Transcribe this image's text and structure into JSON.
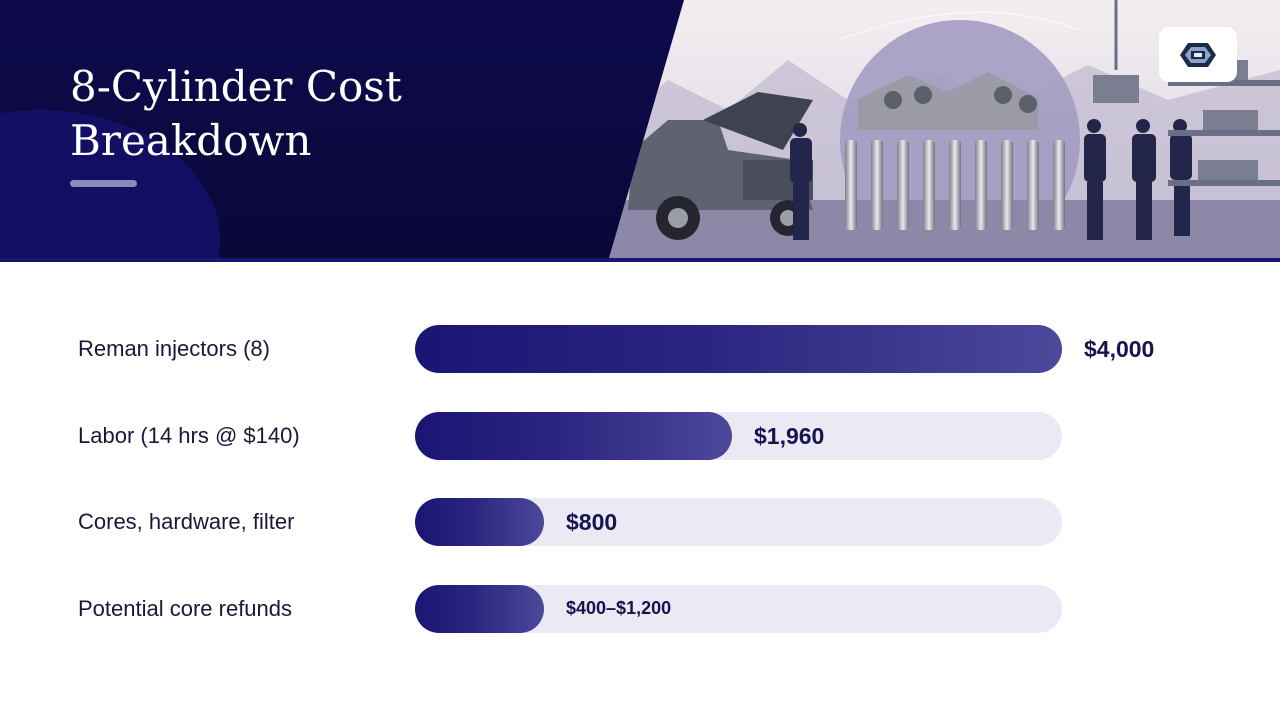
{
  "title_line1": "8-Cylinder Cost",
  "title_line2": "Breakdown",
  "colors": {
    "header_bg": "#0e0a4d",
    "bar_fill": "#2b2580",
    "bar_track": "#ebe9f4",
    "value_text": "#16134f"
  },
  "chart_data": {
    "type": "bar",
    "orientation": "horizontal",
    "categories": [
      "Reman injectors (8)",
      "Labor (14 hrs @ $140)",
      "Cores, hardware, filter",
      "Potential core refunds"
    ],
    "values": [
      4000,
      1960,
      800,
      800
    ],
    "value_labels": [
      "$4,000",
      "$1,960",
      "$800",
      "$400–$1,200"
    ],
    "xlim": [
      0,
      4000
    ],
    "grid": false
  }
}
